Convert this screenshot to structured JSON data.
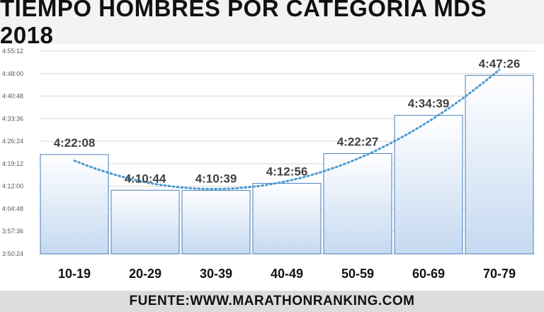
{
  "page": {
    "title": "TIEMPO HOMBRES POR CATEGORIA MDS 2018",
    "footer": "FUENTE:WWW.MARATHONRANKING.COM"
  },
  "colors": {
    "bar_top": "#ffffff",
    "bar_bottom": "#c5d9f1",
    "bar_stroke": "#4a7ebb",
    "trendline": "#4a9bd1",
    "gridline": "#d9d9d9",
    "data_label": "#404040"
  },
  "chart_data": {
    "type": "bar",
    "title": "TIEMPO HOMBRES POR CATEGORIA MDS 2018",
    "xlabel": "",
    "ylabel": "",
    "categories": [
      "10-19",
      "20-29",
      "30-39",
      "40-49",
      "50-59",
      "60-69",
      "70-79"
    ],
    "values": [
      "4:22:08",
      "4:10:44",
      "4:10:39",
      "4:12:56",
      "4:22:27",
      "4:34:39",
      "4:47:26"
    ],
    "value_labels": [
      "4:22:08",
      "4:10:44",
      "4:10:39",
      "4:12:56",
      "4:22:27",
      "4:34:39",
      "4:47:26"
    ],
    "ylim": [
      "3:50:24",
      "4:55:12"
    ],
    "yticks": [
      "3:50:24",
      "3:57:36",
      "4:04:48",
      "4:12:00",
      "4:19:12",
      "4:26:24",
      "4:33:36",
      "4:40:48",
      "4:48:00",
      "4:55:12"
    ],
    "trendline": "polynomial",
    "grid": true,
    "legend": "none"
  }
}
